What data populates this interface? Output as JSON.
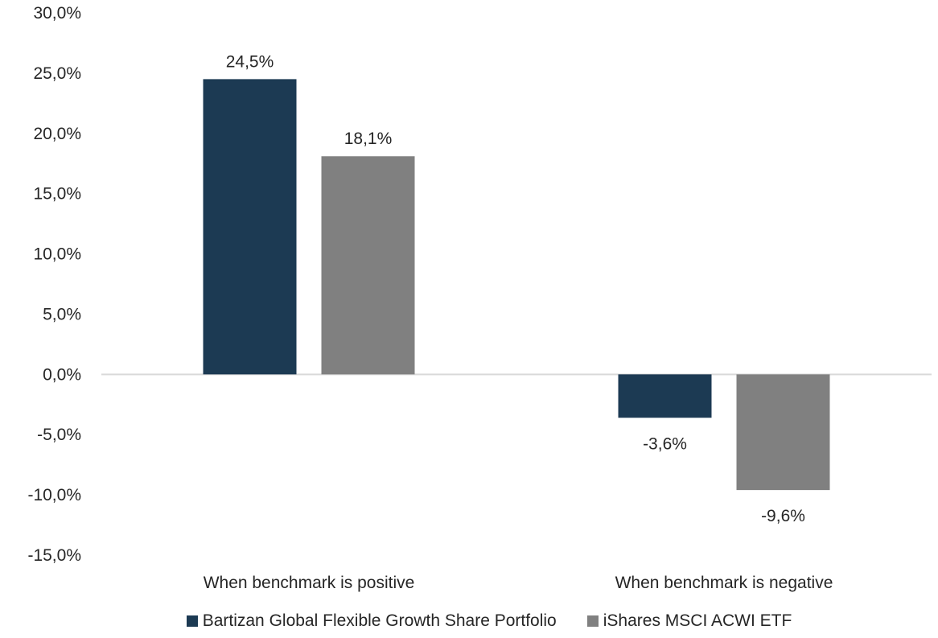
{
  "chart_data": {
    "type": "bar",
    "categories": [
      "When benchmark is positive",
      "When benchmark is negative"
    ],
    "series": [
      {
        "name": "Bartizan Global Flexible Growth Share Portfolio",
        "values": [
          24.5,
          -3.6
        ],
        "labels": [
          "24,5%",
          "-3,6%"
        ],
        "color": "#1c3a53"
      },
      {
        "name": "iShares MSCI ACWI ETF",
        "values": [
          18.1,
          -9.6
        ],
        "labels": [
          "18,1%",
          "-9,6%"
        ],
        "color": "#808080"
      }
    ],
    "ylim": [
      -15,
      30
    ],
    "yticks": [
      30,
      25,
      20,
      15,
      10,
      5,
      0,
      -5,
      -10,
      -15
    ],
    "ytick_labels": [
      "30,0%",
      "25,0%",
      "20,0%",
      "15,0%",
      "10,0%",
      "5,0%",
      "0,0%",
      "-5,0%",
      "-10,0%",
      "-15,0%"
    ],
    "title": "",
    "xlabel": "",
    "ylabel": "",
    "grid": false,
    "legend": "bottom"
  }
}
